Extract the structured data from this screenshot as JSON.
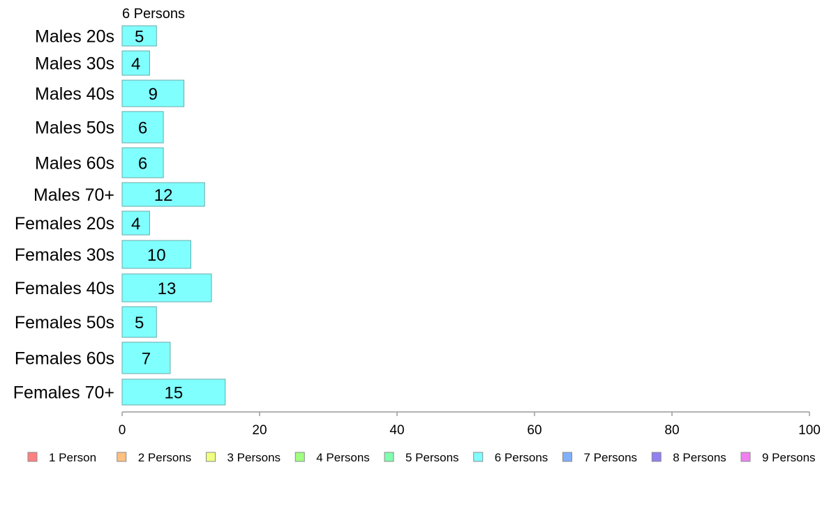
{
  "chart_data": {
    "type": "bar",
    "orientation": "horizontal",
    "title": "6 Persons",
    "categories": [
      "Males 20s",
      "Males 30s",
      "Males 40s",
      "Males 50s",
      "Males 60s",
      "Males 70+",
      "Females 20s",
      "Females 30s",
      "Females 40s",
      "Females 50s",
      "Females 60s",
      "Females 70+"
    ],
    "series": [
      {
        "name": "6 Persons",
        "color": "#80FFFF",
        "values": [
          5,
          4,
          9,
          6,
          6,
          12,
          4,
          10,
          13,
          5,
          7,
          15
        ]
      }
    ],
    "xlim": [
      0,
      100
    ],
    "xticks": [
      0,
      20,
      40,
      60,
      80,
      100
    ],
    "grid": false,
    "legend_position": "bottom",
    "legend": [
      {
        "label": "1 Person",
        "color": "#FF8080"
      },
      {
        "label": "2 Persons",
        "color": "#FFC080"
      },
      {
        "label": "3 Persons",
        "color": "#F0FF80"
      },
      {
        "label": "4 Persons",
        "color": "#A0FF80"
      },
      {
        "label": "5 Persons",
        "color": "#80FFB0"
      },
      {
        "label": "6 Persons",
        "color": "#80FFFF"
      },
      {
        "label": "7 Persons",
        "color": "#80B0FF"
      },
      {
        "label": "8 Persons",
        "color": "#9080F0"
      },
      {
        "label": "9 Persons",
        "color": "#F080F0"
      }
    ]
  }
}
